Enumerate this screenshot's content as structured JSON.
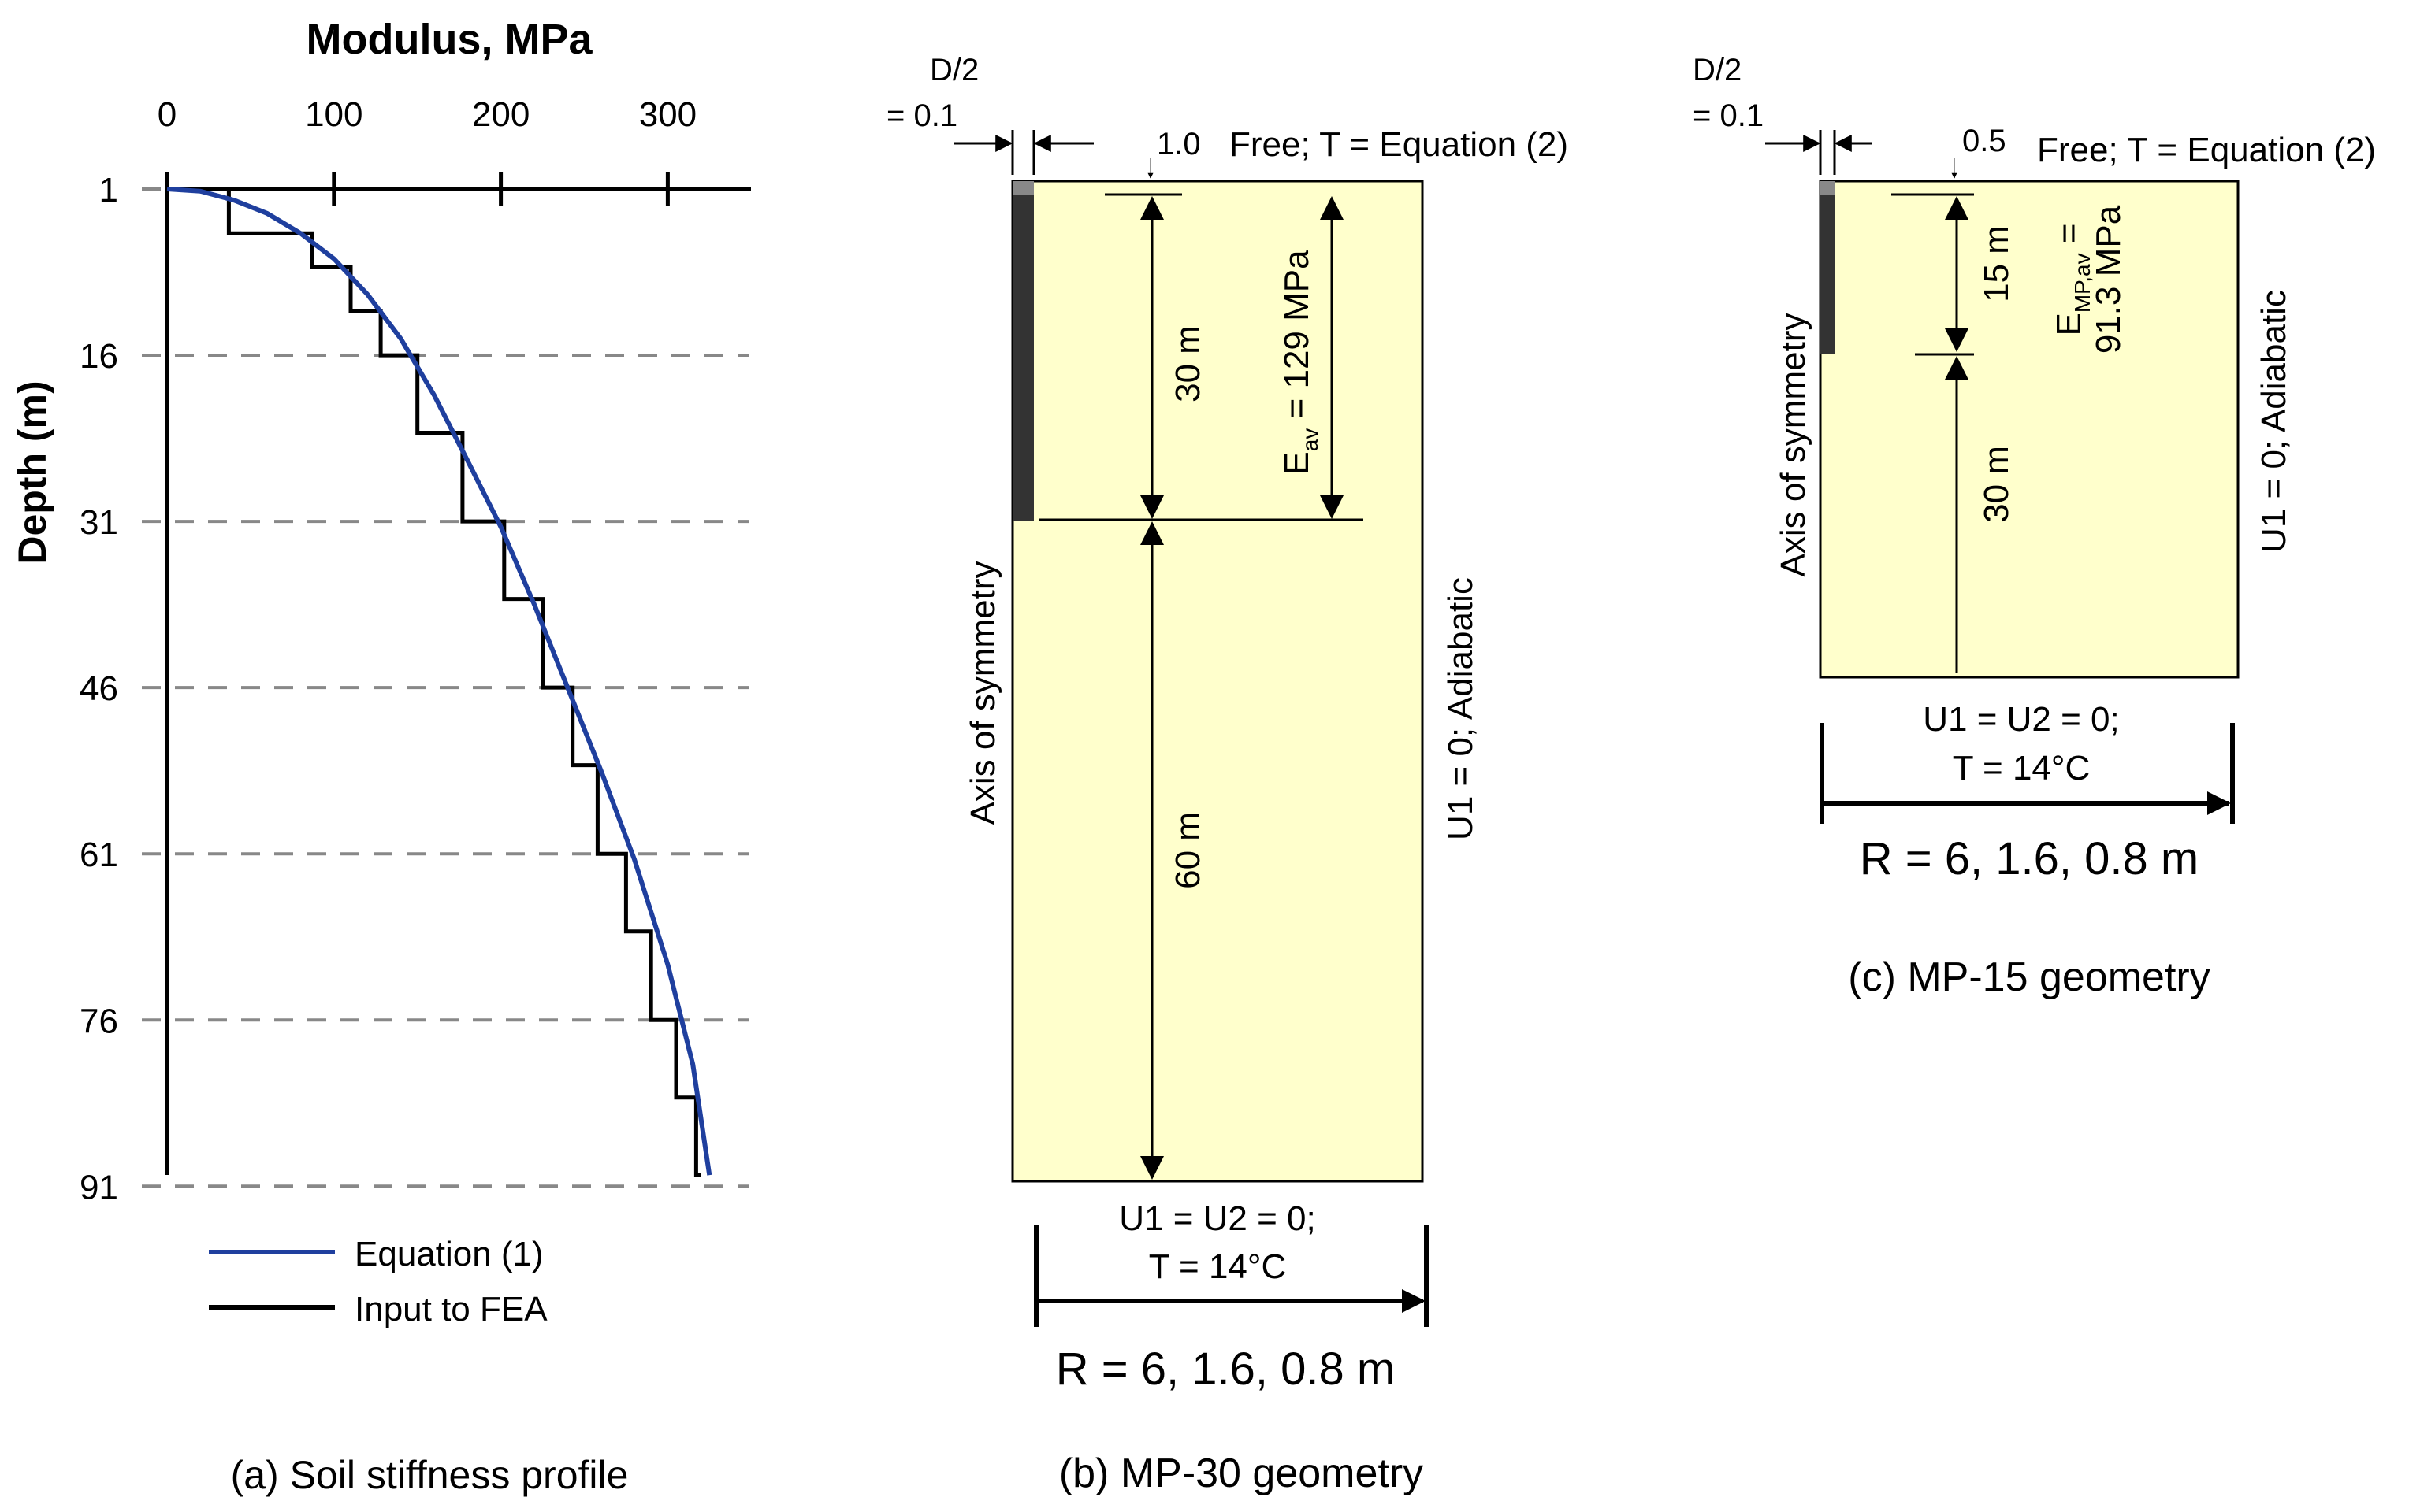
{
  "colors": {
    "soil": "#ffffcc",
    "pile": "#333333",
    "pile_cap": "#888888",
    "equation_line": "#1f3f9e",
    "fea_line": "#000000",
    "grid": "#888888"
  },
  "chart_data": {
    "type": "line",
    "title": "Modulus, MPa",
    "xlabel": "Modulus, MPa",
    "ylabel": "Depth (m)",
    "xlim": [
      0,
      350
    ],
    "ylim": [
      1,
      91
    ],
    "x_ticks": [
      0,
      100,
      200,
      300
    ],
    "y_ticks": [
      1,
      16,
      31,
      46,
      61,
      76,
      91
    ],
    "grid": "horizontal dashed",
    "legend_position": "bottom-left",
    "series": [
      {
        "name": "Equation (1)",
        "color": "#1f3f9e",
        "x": [
          0,
          20,
          40,
          60,
          80,
          100,
          120,
          140,
          160,
          180,
          200,
          220,
          240,
          260,
          280,
          300,
          315,
          325
        ],
        "y": [
          1,
          1.2,
          2,
          3.2,
          5,
          7.3,
          10.5,
          14.5,
          19.6,
          25.5,
          31.5,
          38.5,
          46,
          53.5,
          61.5,
          71,
          80,
          90
        ]
      },
      {
        "name": "Input to FEA",
        "color": "#000000",
        "x": [
          0,
          37,
          37,
          87,
          87,
          110,
          110,
          128,
          128,
          150,
          150,
          177,
          177,
          202,
          202,
          225,
          225,
          243,
          243,
          258,
          258,
          275,
          275,
          290,
          290,
          305,
          305,
          317,
          317,
          320
        ],
        "y": [
          1,
          1,
          5,
          5,
          8,
          8,
          12,
          12,
          16,
          16,
          23,
          23,
          31,
          31,
          38,
          38,
          46,
          46,
          53,
          53,
          61,
          61,
          68,
          68,
          76,
          76,
          83,
          83,
          90,
          90
        ]
      }
    ]
  },
  "panel_a": {
    "title": "Modulus, MPa",
    "ylabel": "Depth (m)",
    "x_tick_labels": [
      "0",
      "100",
      "200",
      "300"
    ],
    "y_tick_labels": [
      "1",
      "16",
      "31",
      "46",
      "61",
      "76",
      "91"
    ],
    "legend": [
      "Equation (1)",
      "Input to FEA"
    ],
    "caption": "(a) Soil stiffness profile"
  },
  "panel_b": {
    "d2_line1": "D/2",
    "d2_line2": "= 0.1",
    "top_gap": "1.0",
    "top_label": "Free; T = Equation (2)",
    "dim_pile": "30 m",
    "dim_below": "60 m",
    "modulus_main": "E",
    "modulus_sub": "av",
    "modulus_rest": " = 129 MPa",
    "axis_label": "Axis of symmetry",
    "right_label": "U1 = 0; Adiabatic",
    "bottom_bc1": "U1 = U2 = 0;",
    "bottom_bc2": "T = 14°C",
    "radius": "R = 6, 1.6, 0.8 m",
    "caption": "(b) MP-30 geometry"
  },
  "panel_c": {
    "d2_line1": "D/2",
    "d2_line2": "= 0.1",
    "top_gap": "0.5",
    "top_label": "Free; T = Equation (2)",
    "dim_pile": "15 m",
    "dim_below": "30 m",
    "modulus_main": "E",
    "modulus_sub": "MP,av",
    "modulus_eq": " =",
    "modulus_value": "91.3 MPa",
    "axis_label": "Axis of symmetry",
    "right_label": "U1 = 0; Adiabatic",
    "bottom_bc1": "U1 = U2 = 0;",
    "bottom_bc2": "T = 14°C",
    "radius": "R = 6, 1.6, 0.8 m",
    "caption": "(c) MP-15 geometry"
  }
}
